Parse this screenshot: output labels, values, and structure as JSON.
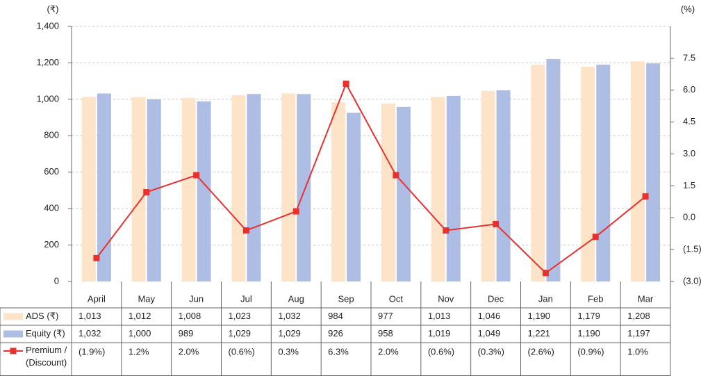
{
  "chart_data": {
    "type": "bar_line_table",
    "y_label": "(₹)",
    "y2_label": "(%)",
    "categories": [
      "April",
      "May",
      "Jun",
      "Jul",
      "Aug",
      "Sep",
      "Oct",
      "Nov",
      "Dec",
      "Jan",
      "Feb",
      "Mar"
    ],
    "series": [
      {
        "name": "ADS (₹)",
        "type": "bar",
        "color": "#fde3c8",
        "values": [
          1013,
          1012,
          1008,
          1023,
          1032,
          984,
          977,
          1013,
          1046,
          1190,
          1179,
          1208
        ],
        "value_labels": [
          "1,013",
          "1,012",
          "1,008",
          "1,023",
          "1,032",
          "984",
          "977",
          "1,013",
          "1,046",
          "1,190",
          "1,179",
          "1,208"
        ]
      },
      {
        "name": "Equity (₹)",
        "type": "bar",
        "color": "#aebde3",
        "values": [
          1032,
          1000,
          989,
          1029,
          1029,
          926,
          958,
          1019,
          1049,
          1221,
          1190,
          1197
        ],
        "value_labels": [
          "1,032",
          "1,000",
          "989",
          "1,029",
          "1,029",
          "926",
          "958",
          "1,019",
          "1,049",
          "1,221",
          "1,190",
          "1,197"
        ]
      },
      {
        "name": "Premium / (Discount)",
        "type": "line",
        "axis": "y2",
        "color": "#e8312f",
        "values": [
          -1.9,
          1.2,
          2.0,
          -0.6,
          0.3,
          6.3,
          2.0,
          -0.6,
          -0.3,
          -2.6,
          -0.9,
          1.0
        ],
        "value_labels": [
          "(1.9%)",
          "1.2%",
          "2.0%",
          "(0.6%)",
          "0.3%",
          "6.3%",
          "2.0%",
          "(0.6%)",
          "(0.3%)",
          "(2.6%)",
          "(0.9%)",
          "1.0%"
        ]
      }
    ],
    "ylim": [
      0,
      1400
    ],
    "yticks": [
      0,
      200,
      400,
      600,
      800,
      {
        "value": 1000,
        "label": "1,000"
      },
      {
        "value": 1200,
        "label": "1,200"
      },
      {
        "value": 1400,
        "label": "1,400"
      }
    ],
    "y2lim": [
      -3,
      9
    ],
    "y2ticks": [
      {
        "value": -3,
        "label": "(3.0)"
      },
      {
        "value": -1.5,
        "label": "(1.5)"
      },
      {
        "value": 0,
        "label": "0.0"
      },
      1.5,
      {
        "value": 3,
        "label": "3.0"
      },
      4.5,
      {
        "value": 6,
        "label": "6.0"
      },
      7.5
    ],
    "grid": true
  }
}
